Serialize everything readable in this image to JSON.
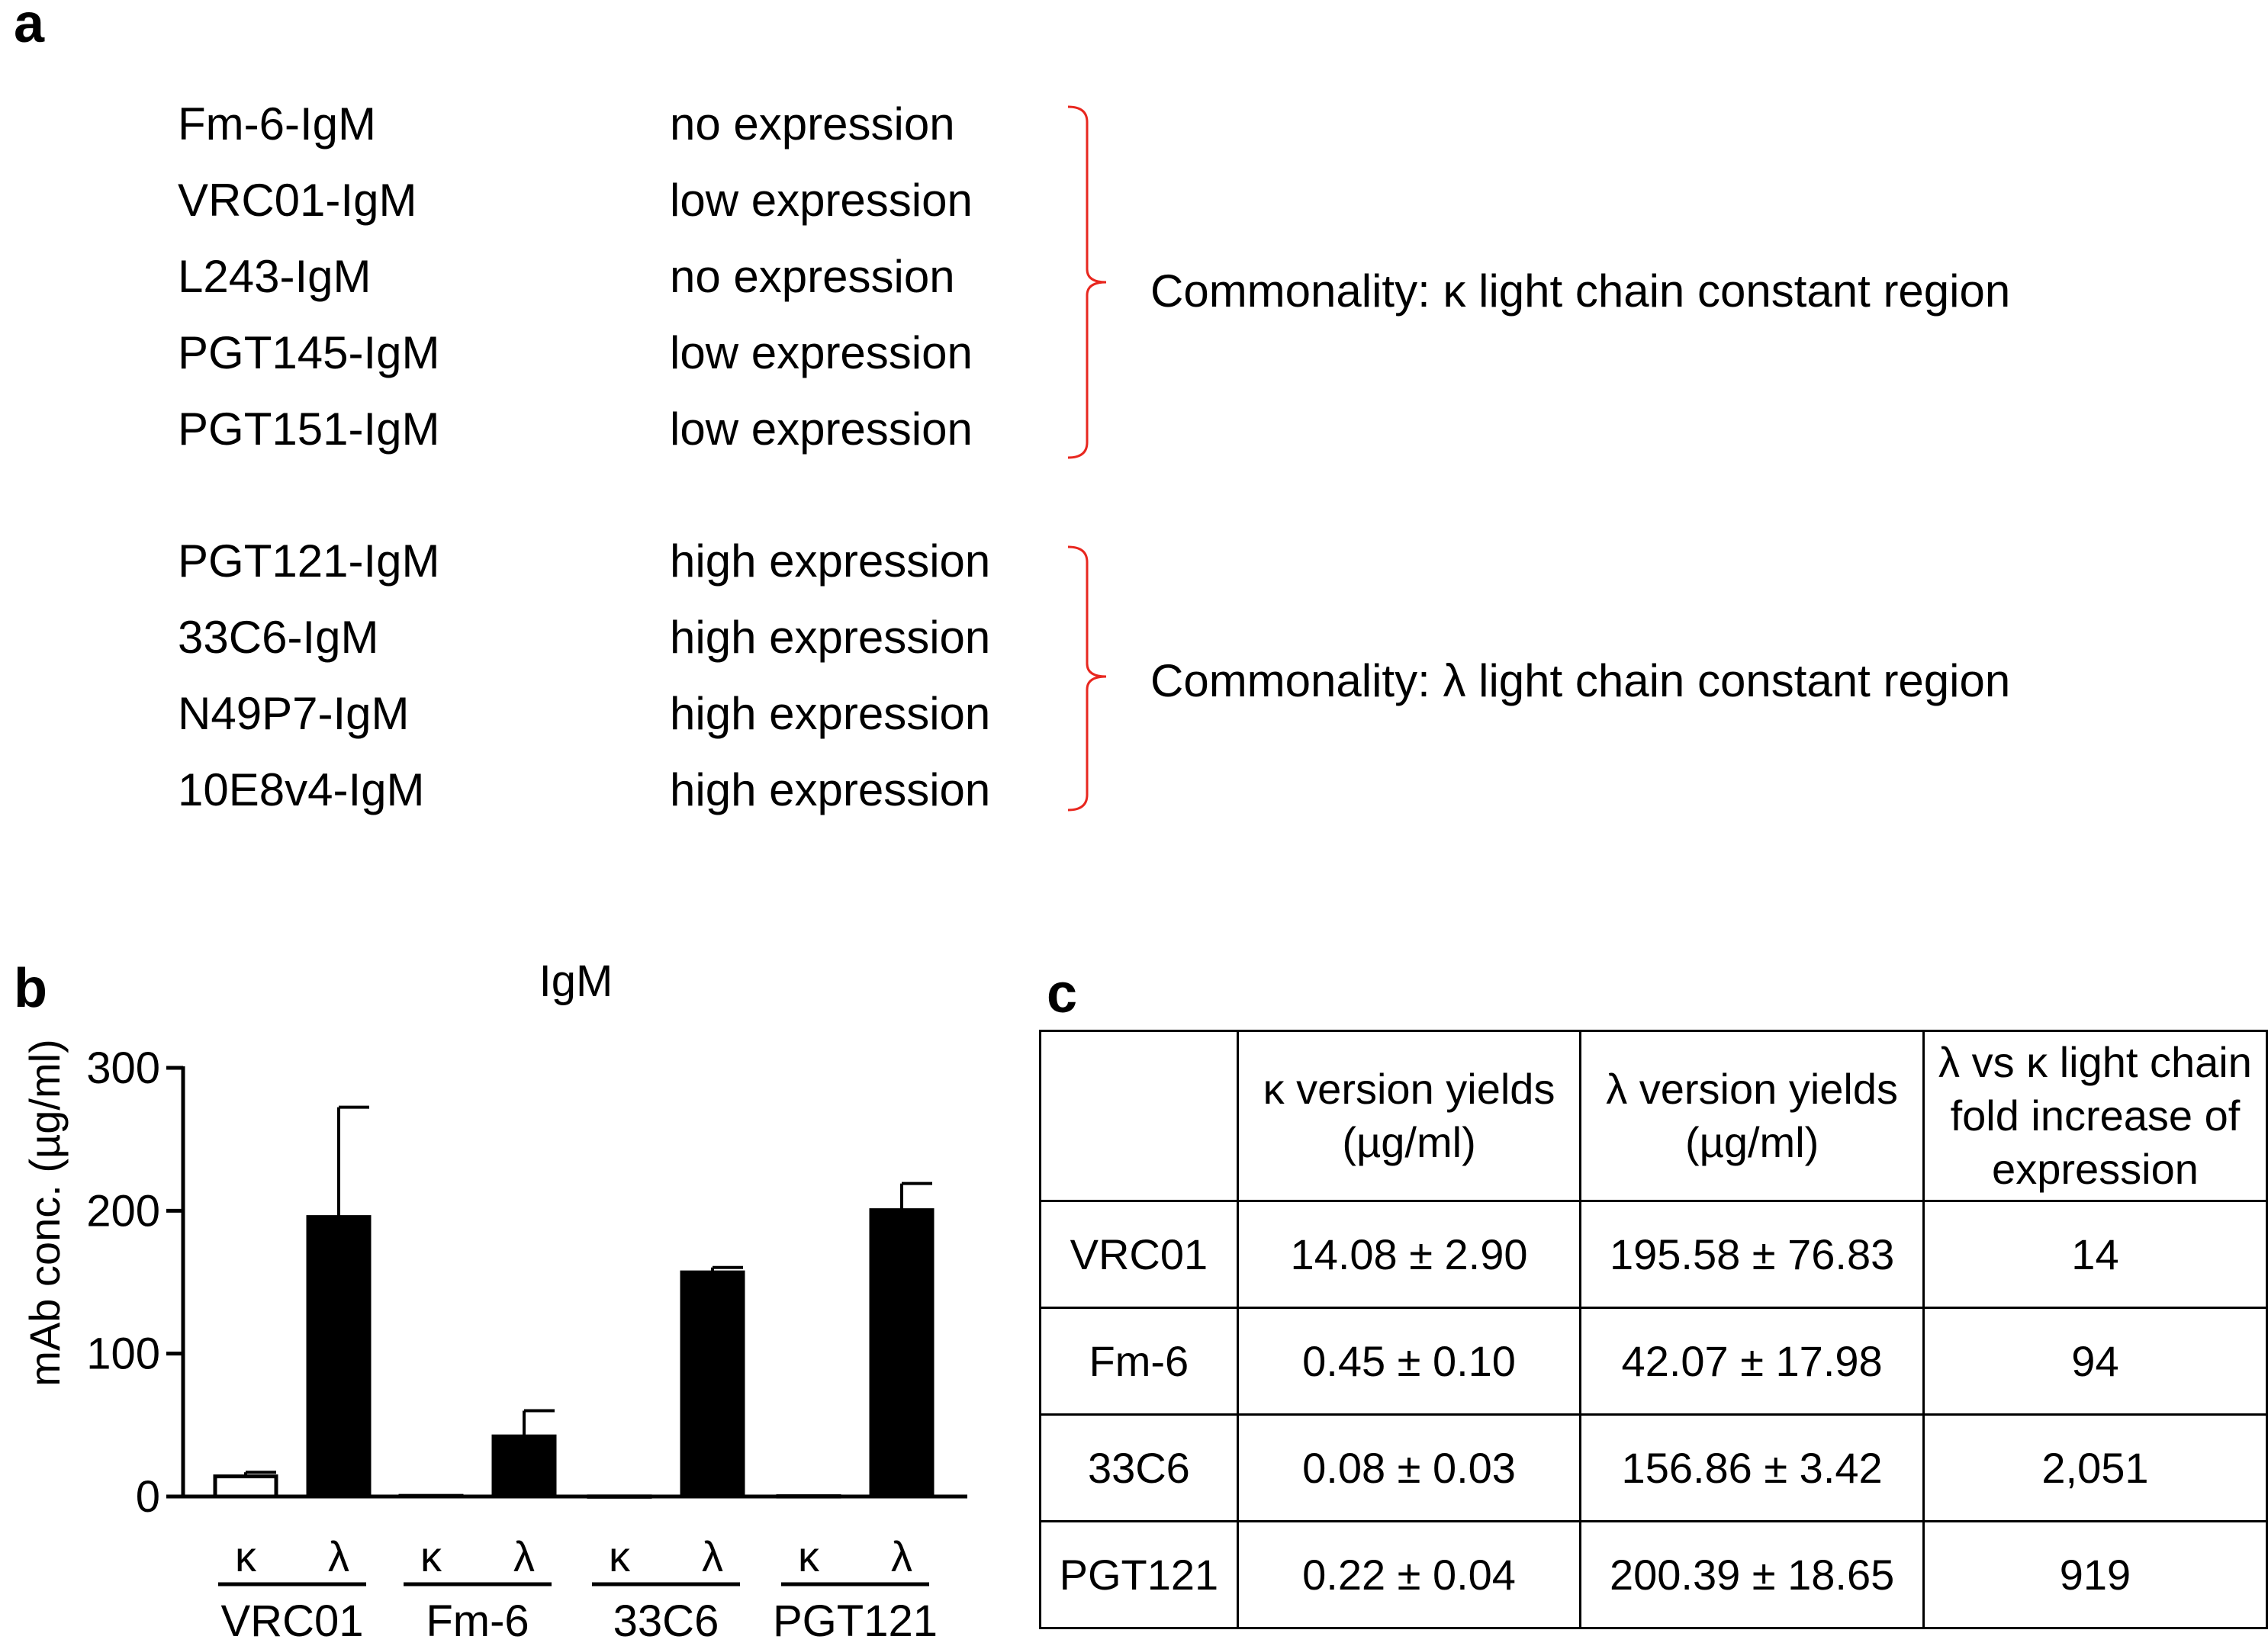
{
  "panels": {
    "a": "a",
    "b": "b",
    "c": "c"
  },
  "panel_a": {
    "groups": [
      {
        "items": [
          {
            "name": "Fm-6-IgM",
            "expression": "no expression"
          },
          {
            "name": "VRC01-IgM",
            "expression": "low expression"
          },
          {
            "name": "L243-IgM",
            "expression": "no expression"
          },
          {
            "name": "PGT145-IgM",
            "expression": "low expression"
          },
          {
            "name": "PGT151-IgM",
            "expression": "low expression"
          }
        ],
        "commonality": "Commonality: κ light chain constant region"
      },
      {
        "items": [
          {
            "name": "PGT121-IgM",
            "expression": "high expression"
          },
          {
            "name": "33C6-IgM",
            "expression": "high expression"
          },
          {
            "name": "N49P7-IgM",
            "expression": "high expression"
          },
          {
            "name": "10E8v4-IgM",
            "expression": "high expression"
          }
        ],
        "commonality": "Commonality: λ light chain constant region"
      }
    ],
    "bracket_color": "#e8271f"
  },
  "chart_data": {
    "type": "bar",
    "title": "IgM",
    "ylabel": "mAb conc. (µg/ml)",
    "xlabel": "",
    "ylim": [
      0,
      300
    ],
    "yticks": [
      0,
      100,
      200,
      300
    ],
    "groups": [
      "VRC01",
      "Fm-6",
      "33C6",
      "PGT121"
    ],
    "subcategories": [
      "κ",
      "λ"
    ],
    "series": [
      {
        "name": "κ",
        "fill": "#ffffff",
        "values": [
          14.08,
          0.45,
          0.08,
          0.22
        ],
        "errors": [
          2.9,
          0.1,
          0.03,
          0.04
        ]
      },
      {
        "name": "λ",
        "fill": "#000000",
        "values": [
          195.58,
          42.07,
          156.86,
          200.39
        ],
        "errors": [
          76.83,
          17.98,
          3.42,
          18.65
        ]
      }
    ]
  },
  "table": {
    "headers": [
      "",
      "κ version yields\n(µg/ml)",
      "λ version yields\n(µg/ml)",
      "λ vs κ light chain\nfold increase of\nexpression"
    ],
    "rows": [
      [
        "VRC01",
        "14.08 ± 2.90",
        "195.58 ± 76.83",
        "14"
      ],
      [
        "Fm-6",
        "0.45 ± 0.10",
        "42.07 ± 17.98",
        "94"
      ],
      [
        "33C6",
        "0.08 ± 0.03",
        "156.86 ± 3.42",
        "2,051"
      ],
      [
        "PGT121",
        "0.22 ± 0.04",
        "200.39 ± 18.65",
        "919"
      ]
    ]
  }
}
